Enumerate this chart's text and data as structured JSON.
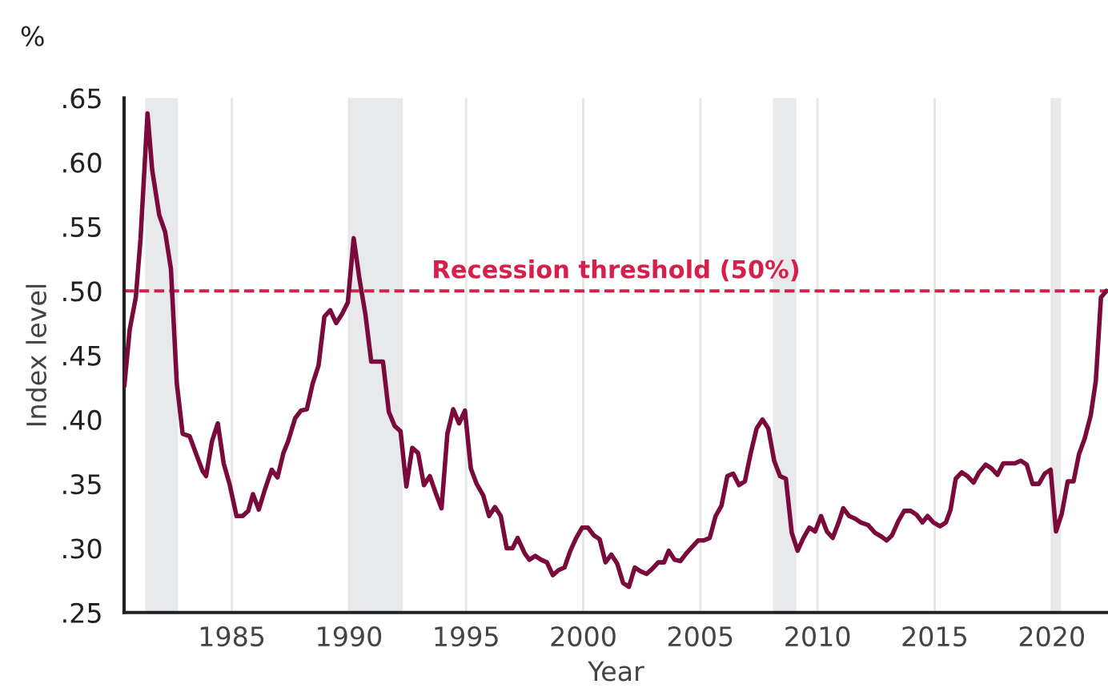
{
  "chart_data": {
    "type": "line",
    "xlabel": "Year",
    "ylabel": "Index level",
    "annotations": [
      "%"
    ],
    "x": [
      1980.41,
      1980.64,
      1980.9,
      1981.1,
      1981.4,
      1981.6,
      1981.9,
      1982.15,
      1982.4,
      1982.65,
      1982.9,
      1983.2,
      1983.5,
      1983.75,
      1983.9,
      1984.15,
      1984.4,
      1984.65,
      1984.9,
      1985.2,
      1985.45,
      1985.7,
      1985.9,
      1986.15,
      1986.4,
      1986.7,
      1986.95,
      1987.2,
      1987.4,
      1987.7,
      1987.95,
      1988.2,
      1988.45,
      1988.7,
      1988.95,
      1989.2,
      1989.45,
      1989.7,
      1989.95,
      1990.2,
      1990.45,
      1990.7,
      1990.95,
      1991.2,
      1991.45,
      1991.7,
      1991.95,
      1992.2,
      1992.45,
      1992.7,
      1992.95,
      1993.2,
      1993.45,
      1993.7,
      1993.95,
      1994.2,
      1994.45,
      1994.7,
      1994.95,
      1995.2,
      1995.45,
      1995.73,
      1995.98,
      1996.23,
      1996.48,
      1996.73,
      1996.98,
      1997.2,
      1997.5,
      1997.7,
      1997.95,
      1998.2,
      1998.45,
      1998.7,
      1998.95,
      1999.2,
      1999.45,
      1999.7,
      1999.95,
      2000.2,
      2000.45,
      2000.7,
      2000.95,
      2001.2,
      2001.45,
      2001.7,
      2001.95,
      2002.2,
      2002.45,
      2002.7,
      2002.95,
      2003.2,
      2003.45,
      2003.65,
      2003.9,
      2004.15,
      2004.4,
      2004.65,
      2004.9,
      2005.15,
      2005.4,
      2005.65,
      2005.9,
      2006.15,
      2006.4,
      2006.65,
      2006.9,
      2007.15,
      2007.4,
      2007.65,
      2007.9,
      2008.15,
      2008.4,
      2008.65,
      2008.9,
      2009.15,
      2009.4,
      2009.65,
      2009.9,
      2010.15,
      2010.4,
      2010.65,
      2010.9,
      2011.1,
      2011.35,
      2011.6,
      2011.85,
      2012.16,
      2012.45,
      2012.73,
      2012.95,
      2013.18,
      2013.45,
      2013.7,
      2013.98,
      2014.23,
      2014.48,
      2014.7,
      2014.95,
      2015.23,
      2015.48,
      2015.68,
      2015.9,
      2016.16,
      2016.4,
      2016.66,
      2016.9,
      2017.18,
      2017.43,
      2017.68,
      2017.93,
      2018.18,
      2018.43,
      2018.68,
      2018.93,
      2019.18,
      2019.45,
      2019.7,
      2019.95,
      2020.18,
      2020.43,
      2020.68,
      2020.93,
      2021.16,
      2021.4,
      2021.66,
      2021.88,
      2022.1,
      2022.33
    ],
    "series": [
      {
        "color": "#7a0a3c",
        "values": [
          0.426,
          0.47,
          0.495,
          0.54,
          0.638,
          0.594,
          0.559,
          0.546,
          0.517,
          0.428,
          0.389,
          0.387,
          0.372,
          0.36,
          0.356,
          0.383,
          0.397,
          0.366,
          0.35,
          0.325,
          0.325,
          0.329,
          0.342,
          0.33,
          0.345,
          0.361,
          0.355,
          0.374,
          0.383,
          0.401,
          0.407,
          0.408,
          0.428,
          0.442,
          0.48,
          0.485,
          0.475,
          0.482,
          0.491,
          0.541,
          0.509,
          0.482,
          0.445,
          0.445,
          0.445,
          0.406,
          0.395,
          0.391,
          0.348,
          0.378,
          0.374,
          0.349,
          0.356,
          0.343,
          0.331,
          0.389,
          0.408,
          0.397,
          0.407,
          0.362,
          0.35,
          0.341,
          0.325,
          0.332,
          0.325,
          0.3,
          0.3,
          0.308,
          0.296,
          0.291,
          0.294,
          0.291,
          0.289,
          0.279,
          0.283,
          0.285,
          0.298,
          0.308,
          0.316,
          0.316,
          0.31,
          0.307,
          0.289,
          0.295,
          0.288,
          0.273,
          0.27,
          0.285,
          0.282,
          0.28,
          0.284,
          0.289,
          0.289,
          0.298,
          0.291,
          0.29,
          0.296,
          0.301,
          0.306,
          0.306,
          0.308,
          0.325,
          0.333,
          0.356,
          0.358,
          0.349,
          0.352,
          0.374,
          0.393,
          0.4,
          0.393,
          0.368,
          0.356,
          0.354,
          0.312,
          0.298,
          0.308,
          0.316,
          0.313,
          0.325,
          0.313,
          0.308,
          0.32,
          0.331,
          0.325,
          0.323,
          0.32,
          0.318,
          0.312,
          0.309,
          0.306,
          0.31,
          0.321,
          0.329,
          0.329,
          0.326,
          0.32,
          0.325,
          0.32,
          0.317,
          0.32,
          0.33,
          0.354,
          0.359,
          0.356,
          0.351,
          0.359,
          0.365,
          0.362,
          0.357,
          0.366,
          0.366,
          0.366,
          0.368,
          0.365,
          0.35,
          0.35,
          0.358,
          0.361,
          0.313,
          0.327,
          0.352,
          0.352,
          0.373,
          0.385,
          0.403,
          0.43,
          0.495,
          0.5
        ]
      }
    ],
    "xlim": [
      1980.4,
      2022.4
    ],
    "ylim": [
      0.25,
      0.65
    ],
    "xticks": [
      1985,
      1990,
      1995,
      2000,
      2005,
      2010,
      2015,
      2020
    ],
    "yticks": [
      {
        "value": 0.25,
        "label": ".25"
      },
      {
        "value": 0.3,
        "label": ".30"
      },
      {
        "value": 0.35,
        "label": ".35"
      },
      {
        "value": 0.4,
        "label": ".40"
      },
      {
        "value": 0.45,
        "label": ".45"
      },
      {
        "value": 0.5,
        "label": ".50"
      },
      {
        "value": 0.55,
        "label": ".55"
      },
      {
        "value": 0.6,
        "label": ".60"
      },
      {
        "value": 0.65,
        "label": ".65"
      }
    ],
    "ref_lines": [
      {
        "axis": "y",
        "value": 0.5,
        "label": "Recession threshold (50%)",
        "color": "#d6204c",
        "line_style": "dashed"
      }
    ],
    "bands": [
      {
        "axis": "x",
        "from": 1981.3,
        "to": 1982.7,
        "color": "#e8e9eb"
      },
      {
        "axis": "x",
        "from": 1990.0,
        "to": 1992.3,
        "color": "#e8e9eb"
      },
      {
        "axis": "x",
        "from": 2008.1,
        "to": 2009.1,
        "color": "#e8e9eb"
      },
      {
        "axis": "x",
        "from": 2020.0,
        "to": 2020.4,
        "color": "#e8e9eb"
      }
    ],
    "grid": "x",
    "line_style": "solid",
    "marker": "none"
  }
}
